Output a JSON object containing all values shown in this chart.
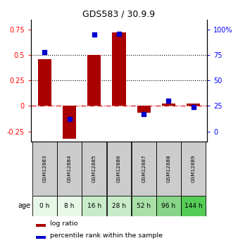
{
  "title": "GDS583 / 30.9.9",
  "samples": [
    "GSM12883",
    "GSM12884",
    "GSM12885",
    "GSM12886",
    "GSM12887",
    "GSM12888",
    "GSM12889"
  ],
  "ages": [
    "0 h",
    "8 h",
    "16 h",
    "28 h",
    "52 h",
    "96 h",
    "144 h"
  ],
  "log_ratio": [
    0.46,
    -0.32,
    0.5,
    0.72,
    -0.07,
    0.02,
    0.02
  ],
  "percentile_rank": [
    0.78,
    0.12,
    0.95,
    0.96,
    0.17,
    0.3,
    0.24
  ],
  "left_ylim": [
    -0.35,
    0.85
  ],
  "left_yticks": [
    -0.25,
    0.0,
    0.25,
    0.5,
    0.75
  ],
  "left_ytick_labels": [
    "-0.25",
    "0",
    "0.25",
    "0.5",
    "0.75"
  ],
  "right_ytick_pcts": [
    0,
    25,
    50,
    75,
    100
  ],
  "right_ytick_labels": [
    "0",
    "25",
    "50",
    "75",
    "100%"
  ],
  "dotted_lines": [
    0.25,
    0.5
  ],
  "bar_color": "#aa0000",
  "dot_color": "#0000cc",
  "age_colors": [
    "#e8f8e8",
    "#e8f8e8",
    "#c8ecc8",
    "#c8ecc8",
    "#a8e0a8",
    "#88d488",
    "#55cc55"
  ],
  "sample_box_color": "#cccccc",
  "legend_bar_label": "log ratio",
  "legend_dot_label": "percentile rank within the sample",
  "bar_width": 0.55,
  "background_color": "#ffffff"
}
